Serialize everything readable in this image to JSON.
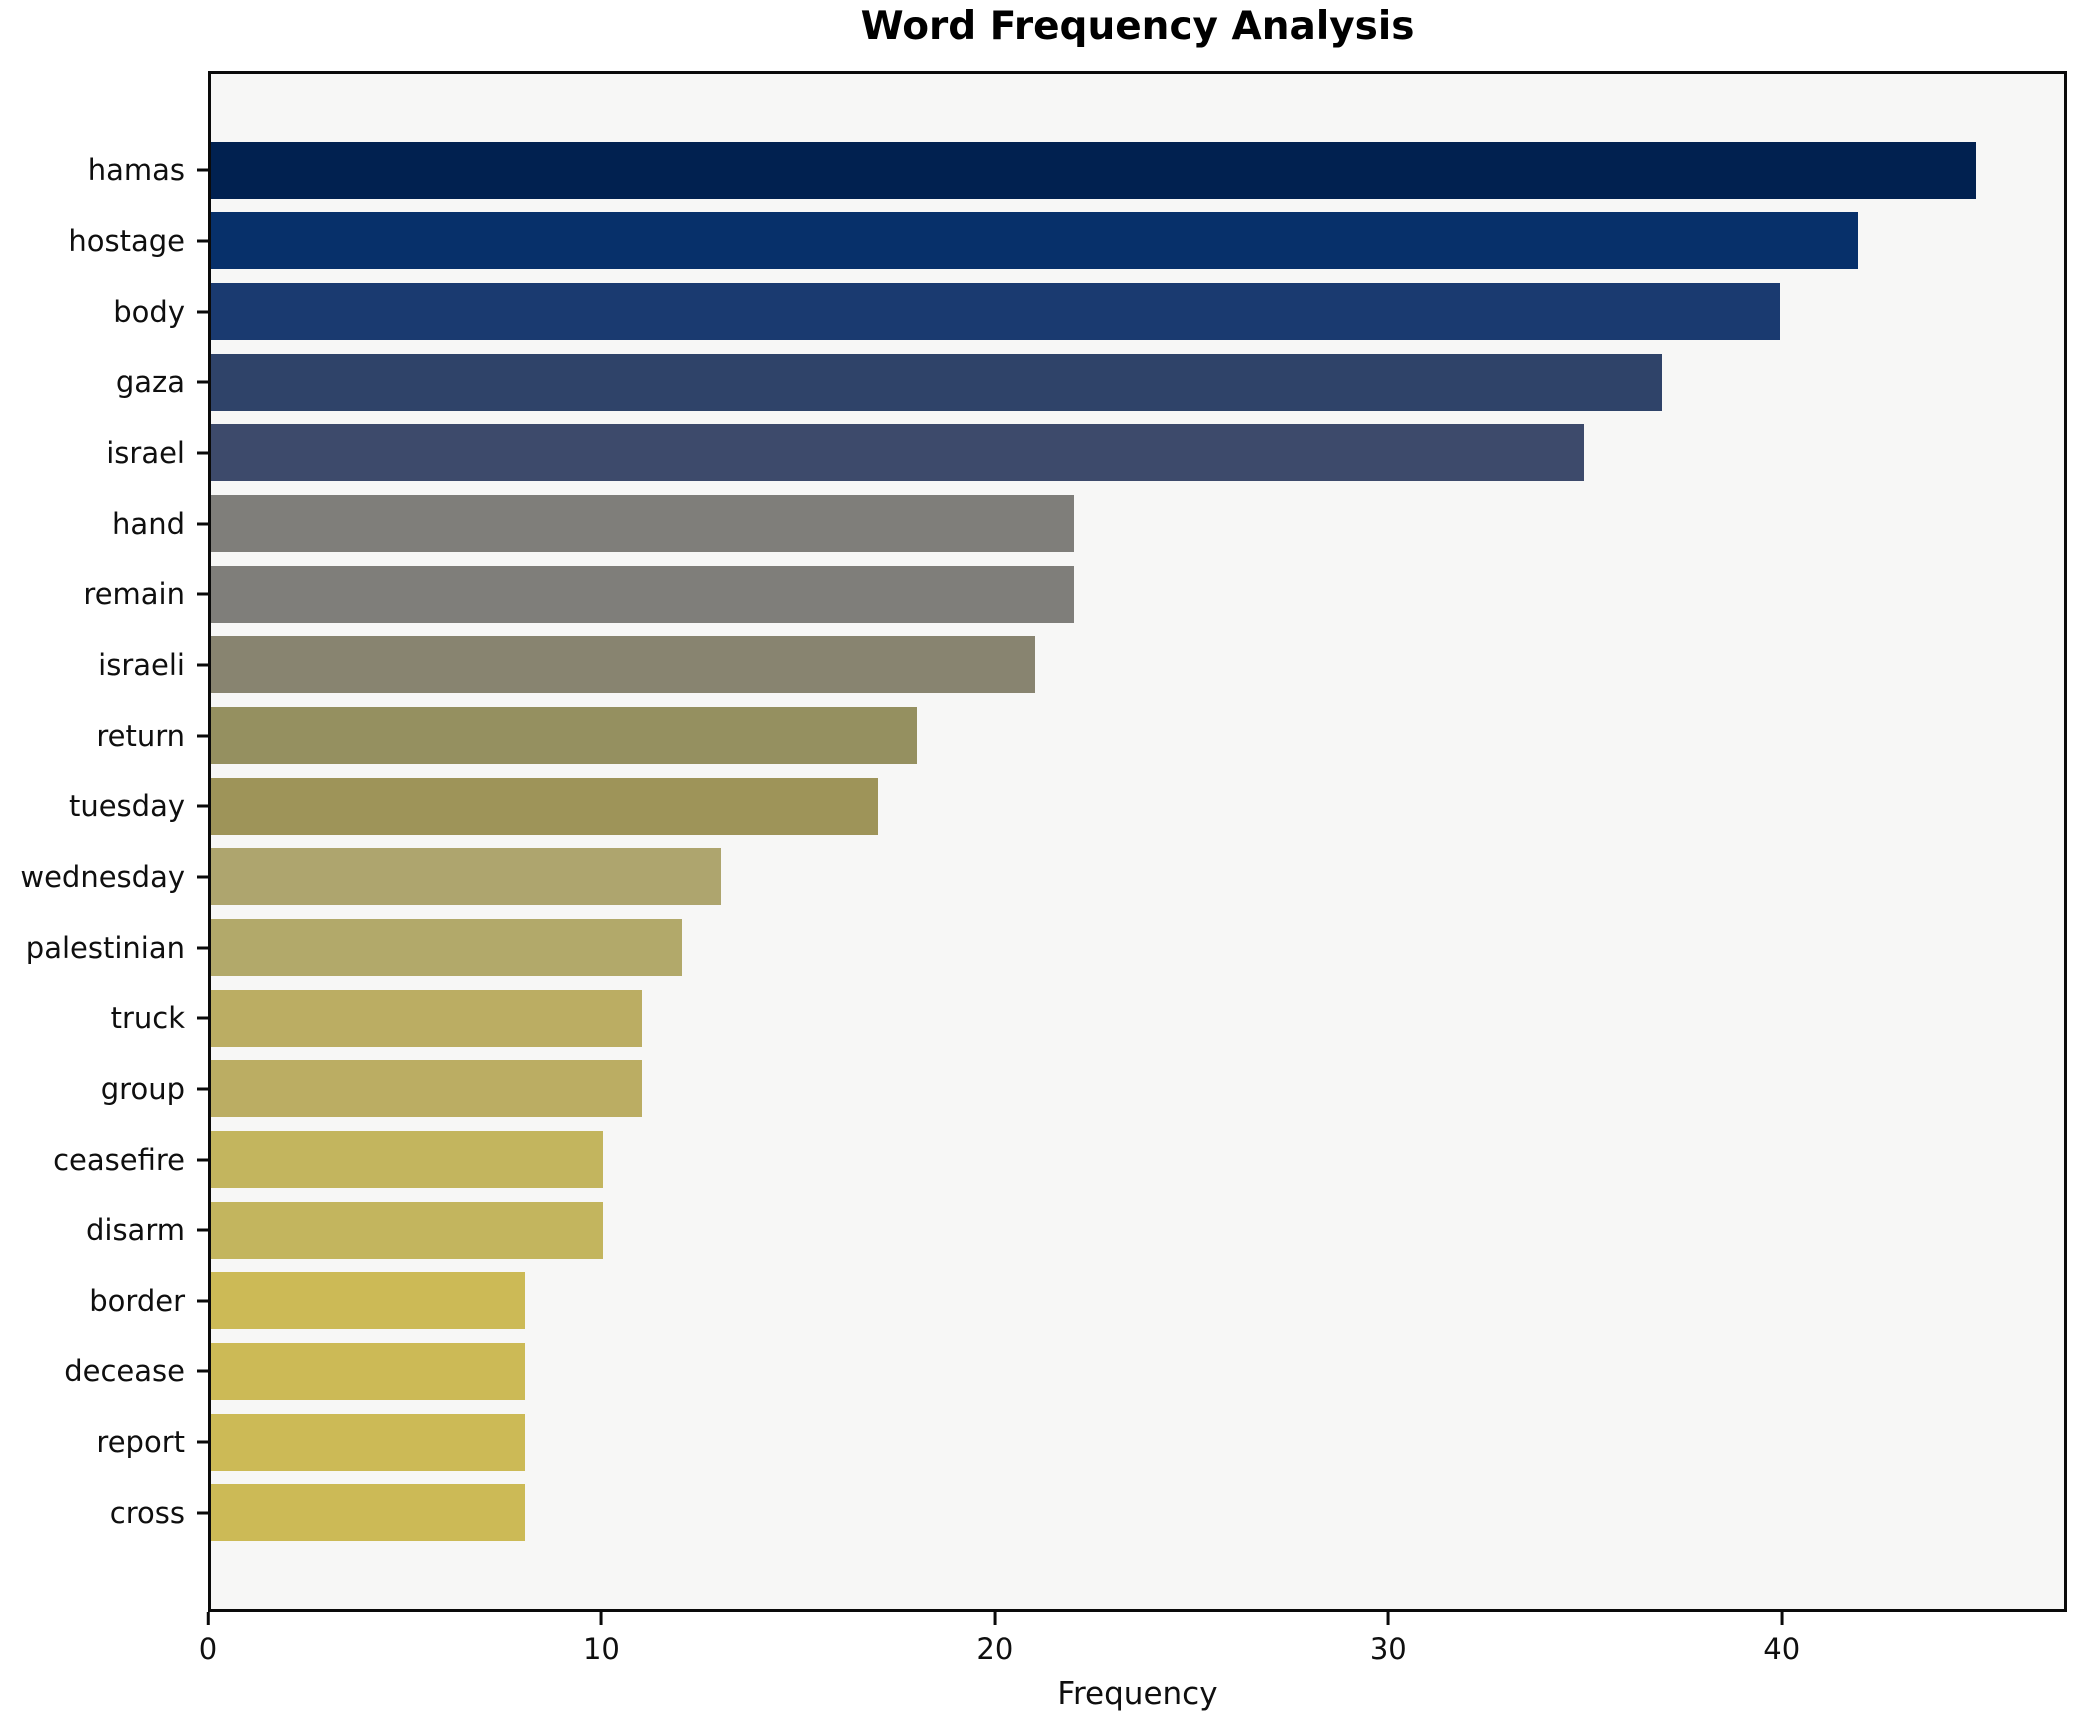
{
  "chart_data": {
    "type": "bar",
    "orientation": "horizontal",
    "title": "Word Frequency Analysis",
    "xlabel": "Frequency",
    "ylabel": "",
    "categories": [
      "hamas",
      "hostage",
      "body",
      "gaza",
      "israel",
      "hand",
      "remain",
      "israeli",
      "return",
      "tuesday",
      "wednesday",
      "palestinian",
      "truck",
      "group",
      "ceasefire",
      "disarm",
      "border",
      "decease",
      "report",
      "cross"
    ],
    "values": [
      45,
      42,
      40,
      37,
      35,
      22,
      22,
      21,
      18,
      17,
      13,
      12,
      11,
      11,
      10,
      10,
      8,
      8,
      8,
      8
    ],
    "colors": [
      "#012150",
      "#07306a",
      "#1a3a70",
      "#2f4369",
      "#3d4a6b",
      "#7f7e7a",
      "#7f7e7a",
      "#888470",
      "#959060",
      "#9e9459",
      "#aea56e",
      "#b2a96a",
      "#bbad63",
      "#bbad63",
      "#c3b55e",
      "#c3b55e",
      "#ccba56",
      "#ccba56",
      "#ccba56",
      "#ccba56"
    ],
    "xlim": [
      0,
      47.25
    ],
    "xticks": [
      0,
      10,
      20,
      30,
      40
    ],
    "grid": false,
    "legend": "none",
    "plot_background": "#f7f7f6",
    "figure_background": "#ffffff",
    "colormap": "cividis-reversed-by-value"
  }
}
